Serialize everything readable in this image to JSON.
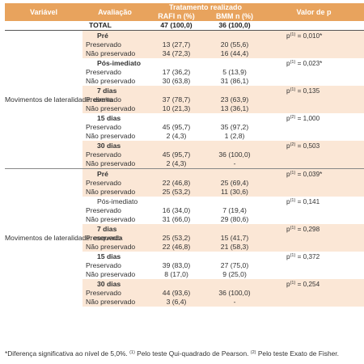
{
  "header": {
    "col_variable": "Variável",
    "col_evaluation": "Avaliação",
    "col_treatment": "Tratamento realizado",
    "col_rafi": "RAFI n (%)",
    "col_bmm": "BMM n (%)",
    "col_p": "Valor de p"
  },
  "total": {
    "label": "TOTAL",
    "rafi": "47 (100,0)",
    "bmm": "36 (100,0)"
  },
  "groups": [
    {
      "variable": "Movimentos de lateralidade: direita",
      "rows": [
        {
          "eval": "Pré",
          "rafi": "",
          "bmm": "",
          "p": "p(1) = 0,010*"
        },
        {
          "eval": "Preservado",
          "rafi": "13 (27,7)",
          "bmm": "20 (55,6)",
          "p": ""
        },
        {
          "eval": "Não preservado",
          "rafi": "34 (72,3)",
          "bmm": "16 (44,4)",
          "p": ""
        },
        {
          "eval": "Pós-imediato",
          "rafi": "",
          "bmm": "",
          "p": "p(1) = 0,023*"
        },
        {
          "eval": "Preservado",
          "rafi": "17 (36,2)",
          "bmm": "5 (13,9)",
          "p": ""
        },
        {
          "eval": "Não preservado",
          "rafi": "30 (63,8)",
          "bmm": "31 (86,1)",
          "p": ""
        },
        {
          "eval": "7 dias",
          "rafi": "",
          "bmm": "",
          "p": "p(1) = 0,135"
        },
        {
          "eval": "Preservado",
          "rafi": "37 (78,7)",
          "bmm": "23 (63,9)",
          "p": ""
        },
        {
          "eval": "Não preservado",
          "rafi": "10 (21,3)",
          "bmm": "13 (36,1)",
          "p": ""
        },
        {
          "eval": "15 dias",
          "rafi": "",
          "bmm": "",
          "p": "p(2) = 1,000"
        },
        {
          "eval": "Preservado",
          "rafi": "45 (95,7)",
          "bmm": "35 (97,2)",
          "p": ""
        },
        {
          "eval": "Não preservado",
          "rafi": "2 (4,3)",
          "bmm": "1 (2,8)",
          "p": ""
        },
        {
          "eval": "30 dias",
          "rafi": "",
          "bmm": "",
          "p": "p(2) = 0,503"
        },
        {
          "eval": "Preservado",
          "rafi": "45 (95,7)",
          "bmm": "36 (100,0)",
          "p": ""
        },
        {
          "eval": "Não preservado",
          "rafi": "2 (4,3)",
          "bmm": "-",
          "p": ""
        }
      ]
    },
    {
      "variable": "Movimentos de lateralidade: esquerda",
      "rows": [
        {
          "eval": "Pré",
          "rafi": "",
          "bmm": "",
          "p": "p(1) = 0,039*"
        },
        {
          "eval": "Preservado",
          "rafi": "22 (46,8)",
          "bmm": "25 (69,4)",
          "p": ""
        },
        {
          "eval": "Não preservado",
          "rafi": "25 (53,2)",
          "bmm": "11 (30,6)",
          "p": ""
        },
        {
          "eval": "Pós-imediato",
          "rafi": "",
          "bmm": "",
          "p": "p(1) = 0,141"
        },
        {
          "eval": "Preservado",
          "rafi": "16 (34,0)",
          "bmm": "7 (19,4)",
          "p": ""
        },
        {
          "eval": "Não preservado",
          "rafi": "31 (66,0)",
          "bmm": "29 (80,6)",
          "p": ""
        },
        {
          "eval": "7 dias",
          "rafi": "",
          "bmm": "",
          "p": "p(1) = 0,298"
        },
        {
          "eval": "Preservado",
          "rafi": "25 (53,2)",
          "bmm": "15 (41,7)",
          "p": ""
        },
        {
          "eval": "Não preservado",
          "rafi": "22 (46,8)",
          "bmm": "21 (58,3)",
          "p": ""
        },
        {
          "eval": "15 dias",
          "rafi": "",
          "bmm": "",
          "p": "p(1) = 0,372"
        },
        {
          "eval": "Preservado",
          "rafi": "39 (83,0)",
          "bmm": "27 (75,0)",
          "p": ""
        },
        {
          "eval": "Não preservado",
          "rafi": "8 (17,0)",
          "bmm": "9 (25,0)",
          "p": ""
        },
        {
          "eval": "30 dias",
          "rafi": "",
          "bmm": "",
          "p": "p(1) = 0,254"
        },
        {
          "eval": "Preservado",
          "rafi": "44 (93,6)",
          "bmm": "36 (100,0)",
          "p": ""
        },
        {
          "eval": "Não preservado",
          "rafi": "3 (6,4)",
          "bmm": "-",
          "p": ""
        }
      ]
    }
  ],
  "footnote": "*Diferença significativa ao nível de 5,0%. (1) Pelo teste Qui-quadrado de Pearson. (2) Pelo teste Exato de Fisher.",
  "colors": {
    "header_bg": "#e8a35d",
    "shade_bg": "#fbe7d6"
  }
}
